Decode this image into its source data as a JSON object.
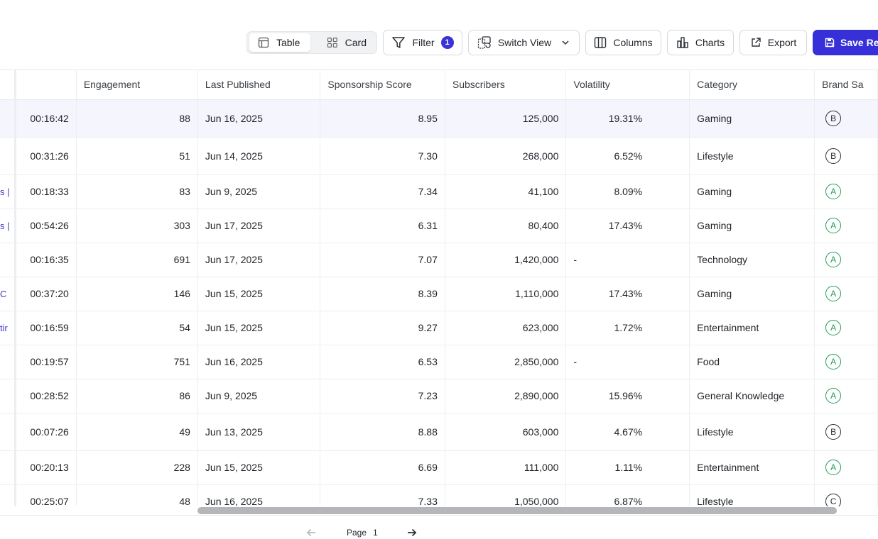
{
  "toolbar": {
    "view_table": "Table",
    "view_card": "Card",
    "filter_label": "Filter",
    "filter_count": "1",
    "switch_view_label": "Switch View",
    "columns_label": "Columns",
    "charts_label": "Charts",
    "export_label": "Export",
    "save_label": "Save Rep"
  },
  "table": {
    "headers": {
      "engagement": "Engagement",
      "last_published": "Last Published",
      "sponsorship_score": "Sponsorship Score",
      "subscribers": "Subscribers",
      "volatility": "Volatility",
      "category": "Category",
      "brand_safety": "Brand Sa"
    },
    "rows": [
      {
        "cut": "",
        "duration": "00:16:42",
        "engagement": "88",
        "last_published": "Jun 16, 2025",
        "sponsorship_score": "8.95",
        "subscribers": "125,000",
        "volatility": "19.31%",
        "category": "Gaming",
        "grade": "B"
      },
      {
        "cut": "",
        "duration": "00:31:26",
        "engagement": "51",
        "last_published": "Jun 14, 2025",
        "sponsorship_score": "7.30",
        "subscribers": "268,000",
        "volatility": "6.52%",
        "category": "Lifestyle",
        "grade": "B"
      },
      {
        "cut": "s |",
        "duration": "00:18:33",
        "engagement": "83",
        "last_published": "Jun 9, 2025",
        "sponsorship_score": "7.34",
        "subscribers": "41,100",
        "volatility": "8.09%",
        "category": "Gaming",
        "grade": "A"
      },
      {
        "cut": "s |",
        "duration": "00:54:26",
        "engagement": "303",
        "last_published": "Jun 17, 2025",
        "sponsorship_score": "6.31",
        "subscribers": "80,400",
        "volatility": "17.43%",
        "category": "Gaming",
        "grade": "A"
      },
      {
        "cut": "",
        "duration": "00:16:35",
        "engagement": "691",
        "last_published": "Jun 17, 2025",
        "sponsorship_score": "7.07",
        "subscribers": "1,420,000",
        "volatility": "-",
        "category": "Technology",
        "grade": "A"
      },
      {
        "cut": "C",
        "duration": "00:37:20",
        "engagement": "146",
        "last_published": "Jun 15, 2025",
        "sponsorship_score": "8.39",
        "subscribers": "1,110,000",
        "volatility": "17.43%",
        "category": "Gaming",
        "grade": "A"
      },
      {
        "cut": "tir",
        "duration": "00:16:59",
        "engagement": "54",
        "last_published": "Jun 15, 2025",
        "sponsorship_score": "9.27",
        "subscribers": "623,000",
        "volatility": "1.72%",
        "category": "Entertainment",
        "grade": "A"
      },
      {
        "cut": "",
        "duration": "00:19:57",
        "engagement": "751",
        "last_published": "Jun 16, 2025",
        "sponsorship_score": "6.53",
        "subscribers": "2,850,000",
        "volatility": "-",
        "category": "Food",
        "grade": "A"
      },
      {
        "cut": "",
        "duration": "00:28:52",
        "engagement": "86",
        "last_published": "Jun 9, 2025",
        "sponsorship_score": "7.23",
        "subscribers": "2,890,000",
        "volatility": "15.96%",
        "category": "General Knowledge",
        "grade": "A"
      },
      {
        "cut": "",
        "duration": "00:07:26",
        "engagement": "49",
        "last_published": "Jun 13, 2025",
        "sponsorship_score": "8.88",
        "subscribers": "603,000",
        "volatility": "4.67%",
        "category": "Lifestyle",
        "grade": "B"
      },
      {
        "cut": "",
        "duration": "00:20:13",
        "engagement": "228",
        "last_published": "Jun 15, 2025",
        "sponsorship_score": "6.69",
        "subscribers": "111,000",
        "volatility": "1.11%",
        "category": "Entertainment",
        "grade": "A"
      },
      {
        "cut": "",
        "duration": "00:25:07",
        "engagement": "48",
        "last_published": "Jun 16, 2025",
        "sponsorship_score": "7.33",
        "subscribers": "1,050,000",
        "volatility": "6.87%",
        "category": "Lifestyle",
        "grade": "C"
      }
    ]
  },
  "pagination": {
    "page_label": "Page",
    "page_number": "1"
  },
  "colors": {
    "accent": "#3730d8",
    "grade_a": "#1f9d57",
    "selected_row": "#f5f5fe"
  }
}
